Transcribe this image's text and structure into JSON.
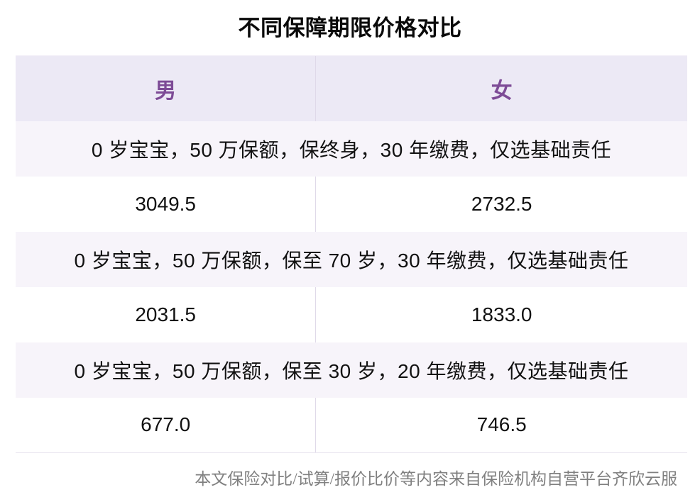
{
  "chart_data": {
    "type": "table",
    "title": "不同保障期限价格对比",
    "columns": [
      "男",
      "女"
    ],
    "groups": [
      {
        "description": "0 岁宝宝，50 万保额，保终身，30 年缴费，仅选基础责任",
        "values": [
          3049.5,
          2732.5
        ]
      },
      {
        "description": "0 岁宝宝，50 万保额，保至 70 岁，30 年缴费，仅选基础责任",
        "values": [
          2031.5,
          1833.0
        ]
      },
      {
        "description": "0 岁宝宝，50 万保额，保至 30 岁，20 年缴费，仅选基础责任",
        "values": [
          677.0,
          746.5
        ]
      }
    ],
    "source_note": "本文保险对比/试算/报价比价等内容来自保险机构自营平台齐欣云服",
    "layout": {
      "grid": false,
      "header_position": "top",
      "value_decimals": 1
    }
  },
  "colors": {
    "header_bg": "#ECE9F5",
    "header_text": "#7D4B96",
    "description_bg": "#F7F4FA",
    "value_bg": "#FFFFFF",
    "divider": "#DFD9E9",
    "table_border": "#EAE6F0",
    "title_text": "#0A0A0A",
    "body_text": "#111111",
    "footer_text": "#808080"
  }
}
